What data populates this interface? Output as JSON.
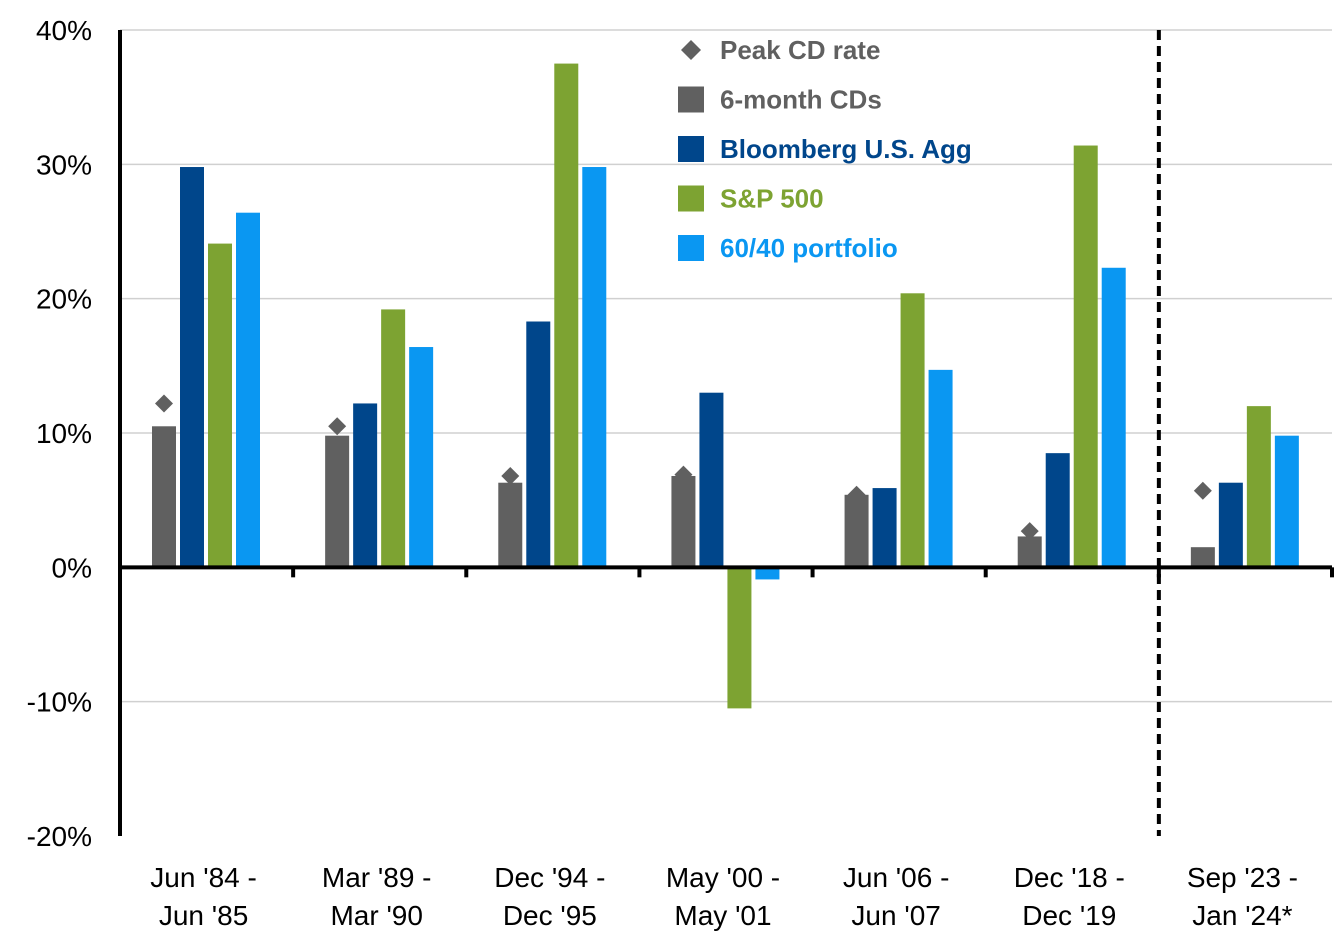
{
  "chart_data": {
    "type": "bar",
    "categories": [
      [
        "Jun '84 -",
        "Jun '85"
      ],
      [
        "Mar '89 -",
        "Mar '90"
      ],
      [
        "Dec '94 -",
        "Dec '95"
      ],
      [
        "May '00 -",
        "May '01"
      ],
      [
        "Jun '06 -",
        "Jun '07"
      ],
      [
        "Dec '18 -",
        "Dec '19"
      ],
      [
        "Sep '23 -",
        "Jan '24*"
      ]
    ],
    "series": [
      {
        "name": "6-month CDs",
        "color": "#606060",
        "values": [
          10.5,
          9.8,
          6.3,
          6.8,
          5.4,
          2.3,
          1.5
        ]
      },
      {
        "name": "Bloomberg U.S. Agg",
        "color": "#00468B",
        "values": [
          29.8,
          12.2,
          18.3,
          13.0,
          5.9,
          8.5,
          6.3
        ]
      },
      {
        "name": "S&P 500",
        "color": "#7DA332",
        "values": [
          24.1,
          19.2,
          37.5,
          -10.5,
          20.4,
          31.4,
          12.0
        ]
      },
      {
        "name": "60/40 portfolio",
        "color": "#0A97F2",
        "values": [
          26.4,
          16.4,
          29.8,
          -0.9,
          14.7,
          22.3,
          9.8
        ]
      }
    ],
    "markers": {
      "name": "Peak CD rate",
      "color": "#606060",
      "shape": "diamond",
      "values": [
        12.2,
        10.5,
        6.8,
        6.9,
        5.4,
        2.7,
        5.7
      ]
    },
    "y_ticks": [
      "40%",
      "30%",
      "20%",
      "10%",
      "0%",
      "-10%",
      "-20%"
    ],
    "ylim": [
      -20,
      40
    ],
    "grid": true,
    "legend_position": "top-center",
    "divider": "dashed line before last category"
  }
}
